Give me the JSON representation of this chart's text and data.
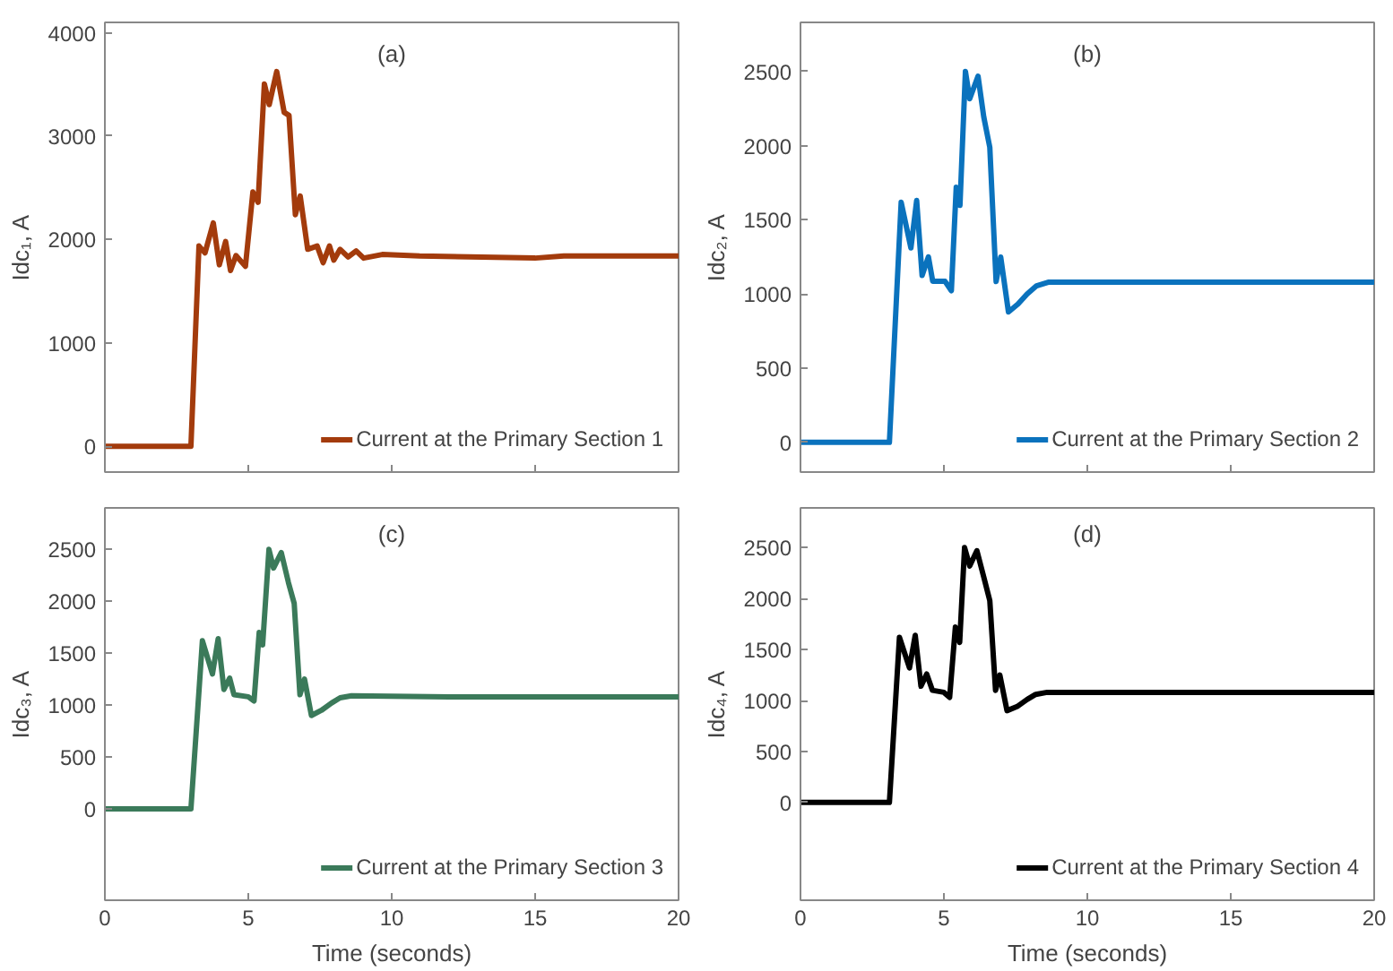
{
  "chart_data": [
    {
      "type": "line",
      "ylabel": "Idc₁, A",
      "annotations": [
        "(a)"
      ],
      "tick_labels": "y",
      "legend": "bottom right",
      "x": [
        0,
        3.0,
        3.28,
        3.49,
        3.78,
        3.99,
        4.21,
        4.38,
        4.57,
        4.9,
        5.16,
        5.34,
        5.56,
        5.73,
        5.99,
        6.25,
        6.42,
        6.64,
        6.81,
        7.07,
        7.4,
        7.61,
        7.83,
        7.98,
        8.2,
        8.48,
        8.76,
        9.02,
        9.67,
        10.97,
        15,
        16,
        20
      ],
      "series": [
        {
          "name": "Current at the Primary Section 1",
          "color": "#a33b0c",
          "values": [
            0,
            0,
            1937,
            1870,
            2160,
            1755,
            1980,
            1700,
            1845,
            1740,
            2460,
            2360,
            3505,
            3305,
            3625,
            3230,
            3200,
            2240,
            2420,
            1905,
            1937,
            1775,
            1937,
            1800,
            1905,
            1830,
            1890,
            1820,
            1855,
            1840,
            1820,
            1840,
            1840
          ]
        }
      ],
      "xlim": [
        0,
        20
      ],
      "xticks": [
        0,
        5,
        10,
        15,
        20
      ],
      "ylim": [
        -250,
        4100
      ],
      "yticks": [
        0,
        1000,
        2000,
        3000,
        4000
      ]
    },
    {
      "type": "line",
      "ylabel": "Idc₂, A",
      "annotations": [
        "(b)"
      ],
      "tick_labels": "y",
      "legend": "bottom right",
      "x": [
        0,
        3.1,
        3.51,
        3.85,
        4.05,
        4.24,
        4.46,
        4.61,
        5.04,
        5.26,
        5.43,
        5.56,
        5.75,
        5.9,
        6.19,
        6.39,
        6.6,
        6.82,
        6.98,
        7.25,
        7.58,
        7.9,
        8.23,
        8.66,
        12,
        15,
        16,
        20
      ],
      "series": [
        {
          "name": "Current at the Primary Section 2",
          "color": "#0a72bd",
          "values": [
            0,
            0,
            1618,
            1310,
            1630,
            1125,
            1250,
            1085,
            1085,
            1022,
            1720,
            1597,
            2500,
            2315,
            2468,
            2192,
            1988,
            1084,
            1249,
            879,
            932,
            1000,
            1055,
            1080,
            1080,
            1080,
            1080,
            1080
          ]
        }
      ],
      "xlim": [
        0,
        20
      ],
      "xticks": [
        0,
        5,
        10,
        15,
        20
      ],
      "ylim": [
        -200,
        2830
      ],
      "yticks": [
        0,
        500,
        1000,
        1500,
        2000,
        2500
      ]
    },
    {
      "type": "line",
      "ylabel": "Idc₃, A",
      "xlabel": "Time (seconds)",
      "annotations": [
        "(c)"
      ],
      "legend": "bottom right",
      "x": [
        0,
        3.0,
        3.4,
        3.75,
        3.95,
        4.15,
        4.35,
        4.5,
        5.0,
        5.2,
        5.38,
        5.5,
        5.72,
        5.88,
        6.15,
        6.4,
        6.6,
        6.8,
        6.96,
        7.2,
        7.55,
        7.9,
        8.2,
        8.6,
        12,
        15,
        16,
        20
      ],
      "series": [
        {
          "name": "Current at the Primary Section 3",
          "color": "#3b7a5a",
          "values": [
            0,
            0,
            1620,
            1300,
            1640,
            1150,
            1260,
            1100,
            1080,
            1040,
            1700,
            1580,
            2500,
            2320,
            2470,
            2180,
            1980,
            1100,
            1250,
            900,
            950,
            1020,
            1070,
            1090,
            1080,
            1080,
            1080,
            1080
          ]
        }
      ],
      "xlim": [
        0,
        20
      ],
      "xticks": [
        0,
        5,
        10,
        15,
        20
      ],
      "ylim": [
        -880,
        2900
      ],
      "yticks": [
        0,
        500,
        1000,
        1500,
        2000,
        2500
      ]
    },
    {
      "type": "line",
      "ylabel": "Idc₄, A",
      "xlabel": "Time (seconds)",
      "annotations": [
        "(d)"
      ],
      "legend": "bottom right",
      "x": [
        0,
        3.1,
        3.45,
        3.8,
        4.0,
        4.2,
        4.4,
        4.6,
        5.0,
        5.2,
        5.4,
        5.55,
        5.72,
        5.9,
        6.15,
        6.4,
        6.6,
        6.8,
        6.95,
        7.2,
        7.55,
        7.9,
        8.2,
        8.6,
        12,
        15,
        16,
        20
      ],
      "series": [
        {
          "name": "Current at the Primary Section 4",
          "color": "#000000",
          "values": [
            0,
            0,
            1620,
            1320,
            1640,
            1140,
            1260,
            1100,
            1080,
            1030,
            1720,
            1570,
            2500,
            2320,
            2470,
            2200,
            1980,
            1100,
            1250,
            900,
            940,
            1010,
            1060,
            1080,
            1080,
            1080,
            1080,
            1080
          ]
        }
      ],
      "xlim": [
        0,
        20
      ],
      "xticks": [
        0,
        5,
        10,
        15,
        20
      ],
      "ylim": [
        -960,
        2890
      ],
      "yticks": [
        0,
        500,
        1000,
        1500,
        2000,
        2500
      ]
    }
  ]
}
